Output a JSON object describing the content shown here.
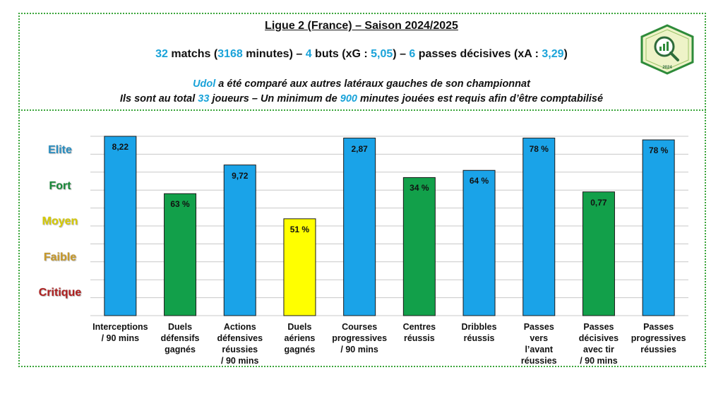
{
  "header": {
    "title": "Ligue 2 (France) – Saison 2024/2025",
    "stats": {
      "matches": "32",
      "matches_text": " matchs (",
      "minutes": "3168",
      "minutes_text": " minutes) – ",
      "goals": "4",
      "goals_text": " buts (xG : ",
      "xg": "5,05",
      "xg_text": ") – ",
      "assists": "6",
      "assists_text": " passes décisives (xA : ",
      "xa": "3,29",
      "xa_text": ")"
    },
    "comparison": {
      "player": "Udol",
      "line1_rest": " a été comparé aux autres latéraux gauches de son championnat",
      "line2_a": "Ils sont au total ",
      "total_players": "33",
      "line2_b": " joueurs – Un minimum de ",
      "min_minutes": "900",
      "line2_c": " minutes jouées est requis afin d’être comptabilisé"
    },
    "logo_year": "2024"
  },
  "colors": {
    "elite": "#1aa3e8",
    "fort": "#12a04a",
    "moyen": "#ffff00",
    "elite_text": "#2a8fc2",
    "fort_text": "#1a8a3a",
    "moyen_text": "#d8cc00",
    "faible_text": "#c89a2a",
    "critique_text": "#b02020",
    "highlight": "#1aa3d9",
    "frame": "#3aa53a"
  },
  "tiers": [
    {
      "label": "Elite",
      "color_key": "elite_text"
    },
    {
      "label": "Fort",
      "color_key": "fort_text"
    },
    {
      "label": "Moyen",
      "color_key": "moyen_text"
    },
    {
      "label": "Faible",
      "color_key": "faible_text"
    },
    {
      "label": "Critique",
      "color_key": "critique_text"
    }
  ],
  "chart_data": {
    "type": "bar",
    "ylim": [
      0,
      100
    ],
    "grid": true,
    "categories": [
      "Interceptions\n/ 90 mins",
      "Duels\ndéfensifs\ngagnés",
      "Actions\ndéfensives\nréussies\n/ 90 mins",
      "Duels\naériens\ngagnés",
      "Courses\nprogressives\n/ 90 mins",
      "Centres\nréussis",
      "Dribbles\nréussis",
      "Passes\nvers\nl’avant\nréussies",
      "Passes\ndécisives\navec tir\n/ 90 mins",
      "Passes\nprogressives\nréussies"
    ],
    "values": [
      100,
      68,
      84,
      54,
      99,
      77,
      81,
      99,
      69,
      98
    ],
    "data_labels": [
      "8,22",
      "63 %",
      "9,72",
      "51 %",
      "2,87",
      "34 %",
      "64 %",
      "78 %",
      "0,77",
      "78 %"
    ],
    "bar_tiers": [
      "elite",
      "fort",
      "elite",
      "moyen",
      "elite",
      "fort",
      "elite",
      "elite",
      "fort",
      "elite"
    ]
  }
}
